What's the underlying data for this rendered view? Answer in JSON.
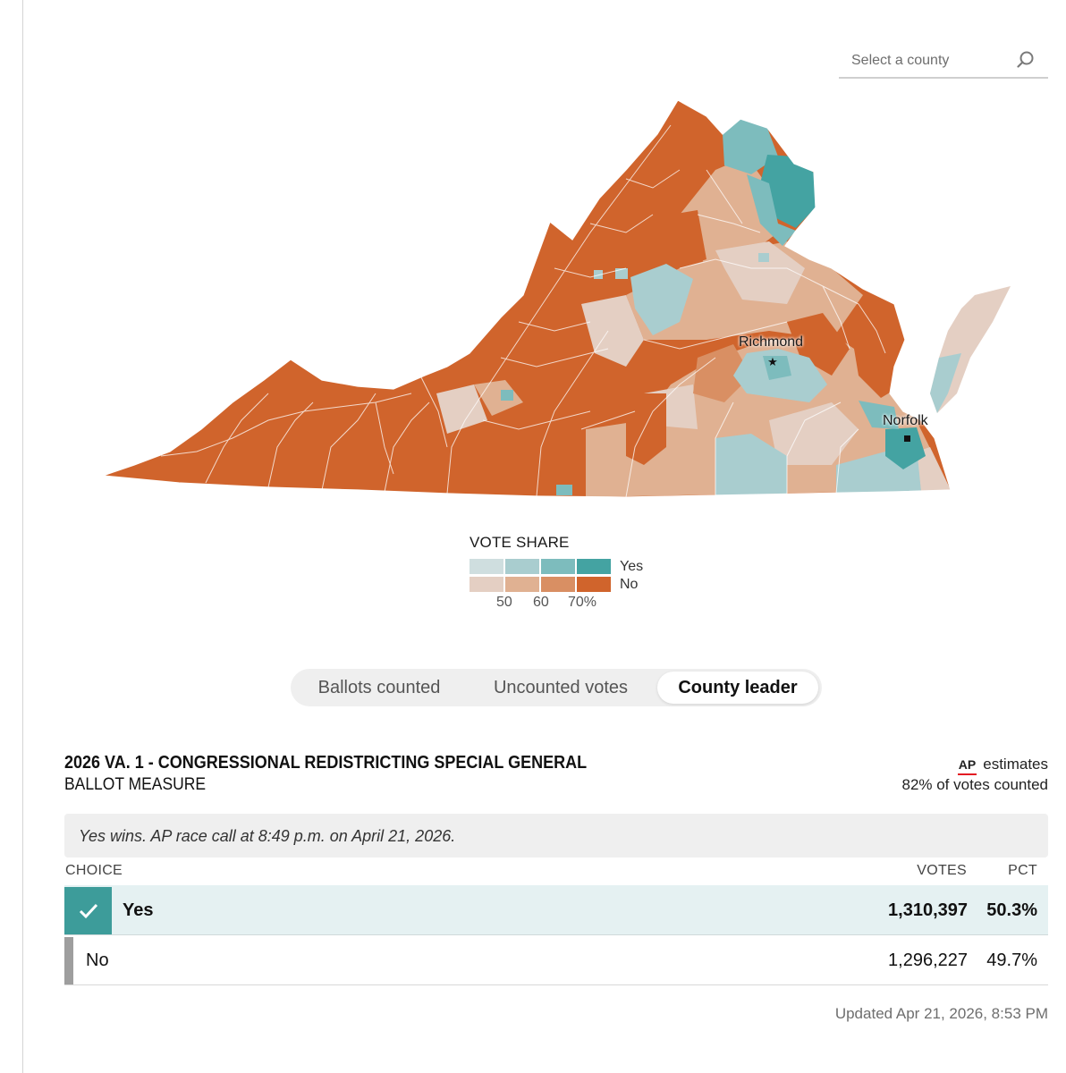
{
  "search": {
    "placeholder": "Select a county",
    "icon": "search-icon"
  },
  "map": {
    "cities": [
      {
        "name": "Richmond",
        "marker": "star"
      },
      {
        "name": "Norfolk",
        "marker": "square"
      }
    ],
    "colors": {
      "yes": [
        "#cfdedf",
        "#a9cdcf",
        "#7dbcbd",
        "#44a3a2"
      ],
      "no": [
        "#e4cfc3",
        "#e0b192",
        "#d98f63",
        "#d0642c"
      ]
    }
  },
  "legend": {
    "title": "VOTE SHARE",
    "yes_label": "Yes",
    "no_label": "No",
    "ticks": [
      "50",
      "60",
      "70%"
    ]
  },
  "toggle": {
    "options": [
      "Ballots counted",
      "Uncounted votes",
      "County leader"
    ],
    "active": "County leader"
  },
  "race": {
    "title": "2026 VA. 1 - CONGRESSIONAL REDISTRICTING SPECIAL GENERAL",
    "subtitle": "BALLOT MEASURE",
    "ap_logo": "AP",
    "ap_estimates": "estimates",
    "counted": "82% of votes counted",
    "call": "Yes wins. AP race call at 8:49 p.m. on April 21, 2026.",
    "headers": {
      "choice": "CHOICE",
      "votes": "VOTES",
      "pct": "PCT"
    },
    "rows": [
      {
        "choice": "Yes",
        "votes": "1,310,397",
        "pct": "50.3%",
        "winner": true
      },
      {
        "choice": "No",
        "votes": "1,296,227",
        "pct": "49.7%",
        "winner": false
      }
    ],
    "updated": "Updated Apr 21, 2026, 8:53 PM"
  }
}
